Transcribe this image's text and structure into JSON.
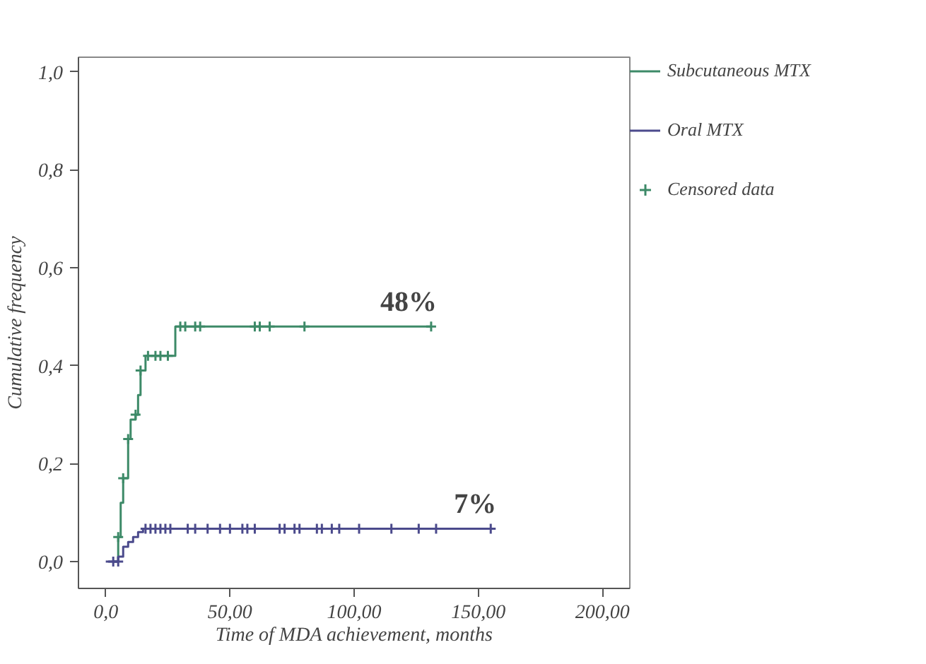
{
  "chart_data": {
    "type": "step",
    "xlabel": "Time of MDA achievement, months",
    "ylabel": "Cumulative frequency",
    "xlim": [
      -11,
      211
    ],
    "ylim": [
      -0.055,
      1.03
    ],
    "xticks": [
      {
        "value": 0,
        "label": "0,0"
      },
      {
        "value": 50,
        "label": "50,00"
      },
      {
        "value": 100,
        "label": "100,00"
      },
      {
        "value": 150,
        "label": "150,00"
      },
      {
        "value": 200,
        "label": "200,00"
      }
    ],
    "yticks": [
      {
        "value": 0,
        "label": "0,0"
      },
      {
        "value": 0.2,
        "label": "0,2"
      },
      {
        "value": 0.4,
        "label": "0,4"
      },
      {
        "value": 0.6,
        "label": "0,6"
      },
      {
        "value": 0.8,
        "label": "0,8"
      },
      {
        "value": 1.0,
        "label": "1,0"
      }
    ],
    "grid": false,
    "legend": "right",
    "line_style": "solid",
    "series": [
      {
        "name": "Subcutaneous MTX",
        "color": "#3d8a68",
        "x": [
          3,
          5,
          6,
          7,
          9,
          10,
          12,
          13,
          14,
          16,
          28,
          131
        ],
        "values": [
          0,
          0.05,
          0.12,
          0.17,
          0.25,
          0.29,
          0.3,
          0.34,
          0.39,
          0.42,
          0.48,
          0.48
        ]
      },
      {
        "name": "Oral MTX",
        "color": "#4b4a8c",
        "x": [
          0,
          5,
          7,
          9,
          11,
          13,
          15,
          155
        ],
        "values": [
          0,
          0.01,
          0.03,
          0.04,
          0.05,
          0.06,
          0.067,
          0.067
        ]
      },
      {
        "name": "Censored data",
        "type": "scatter",
        "marker": "cross",
        "color": "#3d8a68",
        "x": [
          5,
          7,
          9,
          12,
          14,
          17,
          20,
          22,
          25,
          30,
          32,
          36,
          38,
          60,
          62,
          66,
          80,
          131
        ],
        "values": [
          0.05,
          0.17,
          0.25,
          0.3,
          0.39,
          0.42,
          0.42,
          0.42,
          0.42,
          0.48,
          0.48,
          0.48,
          0.48,
          0.48,
          0.48,
          0.48,
          0.48,
          0.48
        ]
      },
      {
        "type": "scatter",
        "marker": "cross",
        "color": "#4b4a8c",
        "x": [
          3,
          5,
          16,
          18,
          20,
          22,
          24,
          26,
          33,
          36,
          41,
          46,
          50,
          55,
          57,
          60,
          70,
          72,
          76,
          78,
          85,
          87,
          91,
          94,
          102,
          115,
          126,
          133,
          155
        ],
        "values": [
          0,
          0,
          0.067,
          0.067,
          0.067,
          0.067,
          0.067,
          0.067,
          0.067,
          0.067,
          0.067,
          0.067,
          0.067,
          0.067,
          0.067,
          0.067,
          0.067,
          0.067,
          0.067,
          0.067,
          0.067,
          0.067,
          0.067,
          0.067,
          0.067,
          0.067,
          0.067,
          0.067,
          0.067
        ]
      }
    ],
    "annotations": [
      {
        "text": "48%",
        "x": 131,
        "y": 0.48
      },
      {
        "text": "7%",
        "x": 155,
        "y": 0.067
      }
    ]
  }
}
